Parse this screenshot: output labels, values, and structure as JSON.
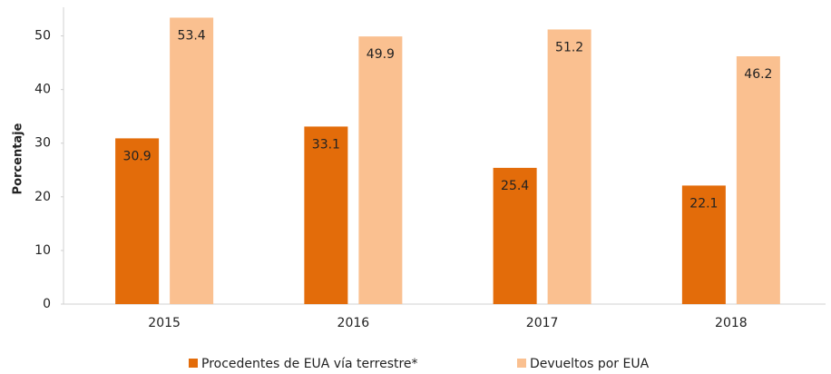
{
  "chart_data": {
    "type": "bar",
    "y_label": "Porcentaje",
    "categories": [
      "2015",
      "2016",
      "2017",
      "2018"
    ],
    "series": [
      {
        "name": "Procedentes de EUA vía terrestre*",
        "color": "#e36c0a",
        "values": [
          30.9,
          33.1,
          25.4,
          22.1
        ]
      },
      {
        "name": "Devueltos por EUA",
        "color": "#fac090",
        "values": [
          53.4,
          49.9,
          51.2,
          46.2
        ]
      }
    ],
    "ylim": [
      0,
      55
    ],
    "yticks": [
      0,
      10,
      20,
      30,
      40,
      50
    ],
    "grid": false,
    "legend": "bottom"
  }
}
